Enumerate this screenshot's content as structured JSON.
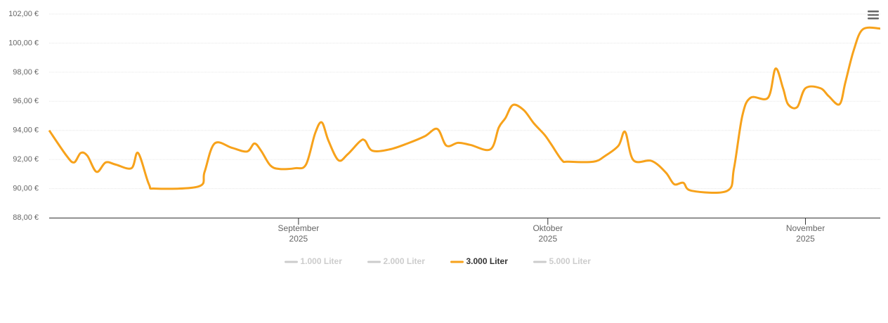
{
  "chart_data": {
    "type": "line",
    "x": [
      1,
      3.1,
      4.0,
      4.8,
      5.6,
      6.7,
      7.8,
      9.0,
      10.9,
      11.7,
      13.0,
      13.8,
      19.0,
      19.7,
      20.9,
      23.0,
      24.8,
      25.7,
      26.5,
      27.6,
      28.7,
      30.6,
      31.9,
      33.0,
      33.8,
      34.6,
      35.8,
      36.9,
      38.4,
      39.0,
      39.9,
      42.0,
      44.1,
      46.2,
      47.7,
      48.8,
      50.2,
      51.7,
      54.1,
      55.1,
      55.9,
      56.8,
      58.1,
      59.3,
      60.6,
      61.4,
      62.7,
      63.4,
      66.5,
      67.9,
      69.5,
      70.3,
      71.3,
      73.5,
      75.2,
      76.2,
      77.3,
      78.3,
      82.6,
      83.4,
      84.4,
      85.4,
      87.5,
      88.4,
      89.3,
      89.9,
      91.0,
      92.0,
      93.8,
      94.8,
      96.1,
      96.8,
      97.8,
      98.9,
      101
    ],
    "series": [
      {
        "name": "1.000 Liter",
        "color": "#cccccc",
        "visible": false
      },
      {
        "name": "2.000 Liter",
        "color": "#cccccc",
        "visible": false
      },
      {
        "name": "3.000 Liter",
        "color": "#f7a21b",
        "visible": true,
        "values": [
          94.0,
          92.25,
          91.8,
          92.45,
          92.25,
          91.15,
          91.8,
          91.65,
          91.4,
          92.45,
          90.3,
          90.0,
          90.15,
          91.15,
          93.1,
          92.8,
          92.55,
          93.1,
          92.6,
          91.6,
          91.35,
          91.4,
          91.65,
          93.8,
          94.55,
          93.3,
          91.95,
          92.35,
          93.25,
          93.3,
          92.6,
          92.7,
          93.1,
          93.6,
          94.1,
          92.95,
          93.15,
          93.0,
          92.7,
          94.2,
          94.85,
          95.75,
          95.4,
          94.5,
          93.7,
          93.05,
          91.95,
          91.85,
          91.85,
          92.25,
          92.95,
          93.9,
          91.95,
          91.9,
          91.1,
          90.3,
          90.4,
          89.85,
          89.85,
          91.4,
          95.0,
          96.25,
          96.25,
          98.25,
          96.9,
          95.8,
          95.6,
          96.9,
          96.9,
          96.35,
          95.8,
          97.3,
          99.5,
          100.95,
          101.0
        ]
      },
      {
        "name": "5.000 Liter",
        "color": "#cccccc",
        "visible": false
      }
    ],
    "xlim": [
      1,
      101
    ],
    "xticks": [
      {
        "value": 31,
        "label": "September 2025"
      },
      {
        "value": 61,
        "label": "Oktober 2025"
      },
      {
        "value": 92,
        "label": "November 2025"
      }
    ],
    "ylim": [
      88,
      102
    ],
    "yticks": [
      {
        "value": 88,
        "label": "88,00 €"
      },
      {
        "value": 90,
        "label": "90,00 €"
      },
      {
        "value": 92,
        "label": "92,00 €"
      },
      {
        "value": 94,
        "label": "94,00 €"
      },
      {
        "value": 96,
        "label": "96,00 €"
      },
      {
        "value": 98,
        "label": "98,00 €"
      },
      {
        "value": 100,
        "label": "100,00 €"
      },
      {
        "value": 102,
        "label": "102,00 €"
      }
    ],
    "grid": true,
    "legend": "bottom"
  }
}
